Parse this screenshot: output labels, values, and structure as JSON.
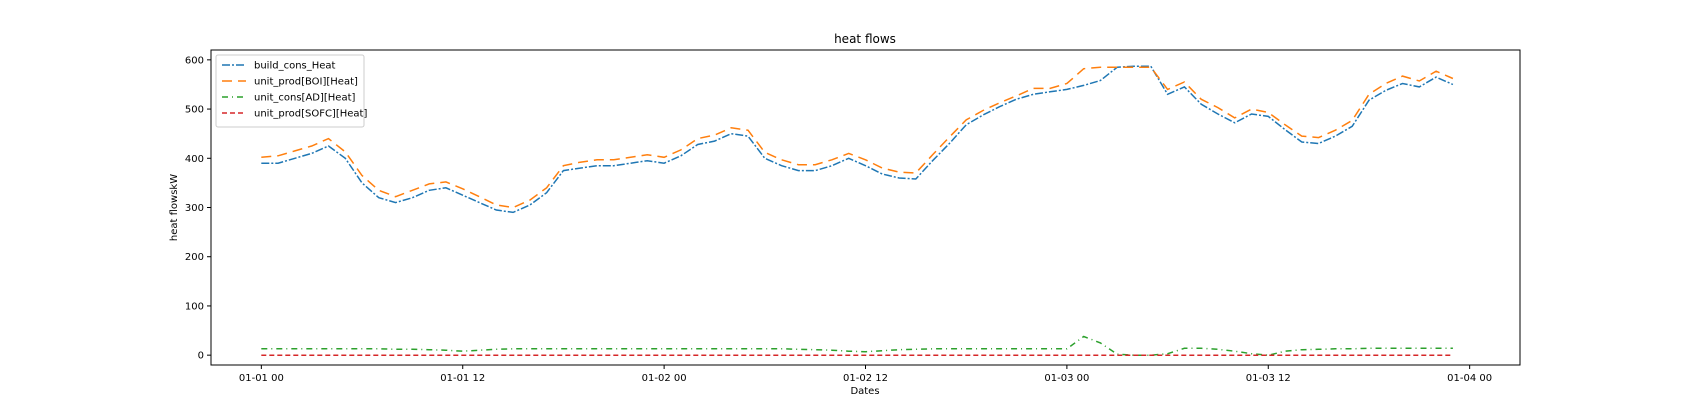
{
  "chart_data": {
    "type": "line",
    "title": "heat flows",
    "xlabel": "Dates",
    "ylabel": "heat flowskW",
    "ylim": [
      -20,
      620
    ],
    "xlim_hours": [
      -3,
      75
    ],
    "x_ticks": [
      {
        "hour": 0,
        "label": "01-01 00"
      },
      {
        "hour": 12,
        "label": "01-01 12"
      },
      {
        "hour": 24,
        "label": "01-02 00"
      },
      {
        "hour": 36,
        "label": "01-02 12"
      },
      {
        "hour": 48,
        "label": "01-03 00"
      },
      {
        "hour": 60,
        "label": "01-03 12"
      },
      {
        "hour": 72,
        "label": "01-04 00"
      }
    ],
    "y_ticks": [
      0,
      100,
      200,
      300,
      400,
      500,
      600
    ],
    "legend_position": "top-left",
    "grid": false,
    "x_hours": [
      0,
      1,
      2,
      3,
      4,
      5,
      6,
      7,
      8,
      9,
      10,
      11,
      12,
      13,
      14,
      15,
      16,
      17,
      18,
      19,
      20,
      21,
      22,
      23,
      24,
      25,
      26,
      27,
      28,
      29,
      30,
      31,
      32,
      33,
      34,
      35,
      36,
      37,
      38,
      39,
      40,
      41,
      42,
      43,
      44,
      45,
      46,
      47,
      48,
      49,
      50,
      51,
      52,
      53,
      54,
      55,
      56,
      57,
      58,
      59,
      60,
      61,
      62,
      63,
      64,
      65,
      66,
      67,
      68,
      69,
      70,
      71
    ],
    "series": [
      {
        "name": "build_cons_Heat",
        "color": "#1f77b4",
        "dash": "8,2,2,2",
        "values": [
          390,
          390,
          400,
          410,
          425,
          400,
          350,
          320,
          310,
          320,
          335,
          340,
          325,
          310,
          295,
          290,
          305,
          330,
          375,
          380,
          385,
          385,
          390,
          395,
          390,
          405,
          428,
          435,
          450,
          445,
          400,
          385,
          375,
          375,
          385,
          400,
          385,
          368,
          360,
          358,
          395,
          430,
          468,
          488,
          505,
          520,
          530,
          535,
          540,
          548,
          558,
          585,
          587,
          587,
          530,
          545,
          510,
          490,
          472,
          490,
          485,
          458,
          433,
          430,
          445,
          465,
          518,
          538,
          552,
          545,
          565,
          550
        ]
      },
      {
        "name": "unit_prod[BOI][Heat]",
        "color": "#ff7f0e",
        "dash": "10,6",
        "values": [
          402,
          405,
          415,
          425,
          440,
          413,
          365,
          335,
          322,
          335,
          348,
          352,
          338,
          322,
          305,
          300,
          315,
          340,
          385,
          392,
          397,
          397,
          402,
          407,
          402,
          417,
          440,
          447,
          462,
          457,
          412,
          397,
          387,
          387,
          397,
          410,
          397,
          380,
          372,
          370,
          407,
          443,
          478,
          497,
          513,
          527,
          542,
          542,
          552,
          582,
          585,
          585,
          585,
          585,
          540,
          555,
          520,
          503,
          482,
          500,
          493,
          468,
          445,
          442,
          457,
          477,
          530,
          552,
          567,
          557,
          577,
          562
        ]
      },
      {
        "name": "unit_cons[AD][Heat]",
        "color": "#2ca02c",
        "dash": "6,4,1,4",
        "values": [
          13,
          13,
          13,
          13,
          13,
          13,
          13,
          13,
          12,
          12,
          11,
          10,
          8,
          10,
          12,
          13,
          13,
          13,
          13,
          13,
          13,
          13,
          13,
          13,
          13,
          13,
          13,
          13,
          13,
          13,
          13,
          13,
          12,
          11,
          10,
          8,
          7,
          9,
          11,
          12,
          13,
          13,
          13,
          13,
          13,
          13,
          13,
          13,
          13,
          38,
          25,
          2,
          0,
          0,
          3,
          14,
          14,
          12,
          8,
          3,
          0,
          8,
          11,
          12,
          13,
          13,
          14,
          14,
          14,
          14,
          14,
          14
        ]
      },
      {
        "name": "unit_prod[SOFC][Heat]",
        "color": "#d62728",
        "dash": "5,3",
        "values": [
          0,
          0,
          0,
          0,
          0,
          0,
          0,
          0,
          0,
          0,
          0,
          0,
          0,
          0,
          0,
          0,
          0,
          0,
          0,
          0,
          0,
          0,
          0,
          0,
          0,
          0,
          0,
          0,
          0,
          0,
          0,
          0,
          0,
          0,
          0,
          0,
          0,
          0,
          0,
          0,
          0,
          0,
          0,
          0,
          0,
          0,
          0,
          0,
          0,
          0,
          0,
          0,
          0,
          0,
          0,
          0,
          0,
          0,
          0,
          0,
          0,
          0,
          0,
          0,
          0,
          0,
          0,
          0,
          0,
          0,
          0,
          0
        ]
      }
    ]
  }
}
